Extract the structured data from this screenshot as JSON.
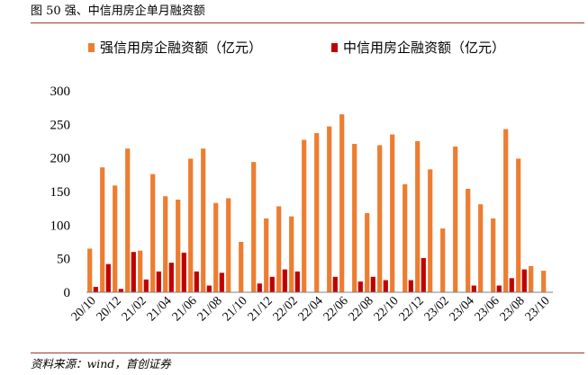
{
  "figure_title": "图 50  强、中信用房企单月融资额",
  "source_note": "资料来源：wind，首创证券",
  "chart_data": {
    "type": "bar",
    "title": "",
    "xlabel": "",
    "ylabel": "",
    "ylim": [
      0,
      300
    ],
    "yticks": [
      0,
      50,
      100,
      150,
      200,
      250,
      300
    ],
    "grid": false,
    "legend_position": "top",
    "categories": [
      "20/10",
      "20/11",
      "20/12",
      "21/01",
      "21/02",
      "21/03",
      "21/04",
      "21/05",
      "21/06",
      "21/07",
      "21/08",
      "21/09",
      "21/10",
      "21/11",
      "21/12",
      "22/01",
      "22/02",
      "22/03",
      "22/04",
      "22/05",
      "22/06",
      "22/07",
      "22/08",
      "22/09",
      "22/10",
      "22/11",
      "22/12",
      "23/01",
      "23/02",
      "23/03",
      "23/04",
      "23/05",
      "23/06",
      "23/07",
      "23/08",
      "23/09",
      "23/10"
    ],
    "tick_labels": [
      "20/10",
      "20/12",
      "21/02",
      "21/04",
      "21/06",
      "21/08",
      "21/10",
      "21/12",
      "22/02",
      "22/04",
      "22/06",
      "22/08",
      "22/10",
      "22/12",
      "23/02",
      "23/04",
      "23/06",
      "23/08",
      "23/10"
    ],
    "series": [
      {
        "name": "强信用房企融资额（亿元）",
        "color": "#ED7D31",
        "values": [
          65,
          186,
          159,
          214,
          62,
          176,
          143,
          138,
          199,
          214,
          133,
          140,
          75,
          194,
          110,
          128,
          113,
          227,
          237,
          247,
          265,
          221,
          118,
          219,
          235,
          161,
          225,
          183,
          95,
          217,
          154,
          131,
          110,
          243,
          199,
          39,
          32
        ]
      },
      {
        "name": "中信用房企融资额（亿元）",
        "color": "#C00000",
        "values": [
          8,
          42,
          5,
          60,
          19,
          31,
          44,
          59,
          31,
          10,
          29,
          0,
          0,
          13,
          23,
          34,
          31,
          0,
          0,
          23,
          0,
          16,
          23,
          18,
          0,
          18,
          51,
          0,
          0,
          0,
          10,
          0,
          10,
          21,
          34,
          0,
          0
        ]
      }
    ]
  }
}
